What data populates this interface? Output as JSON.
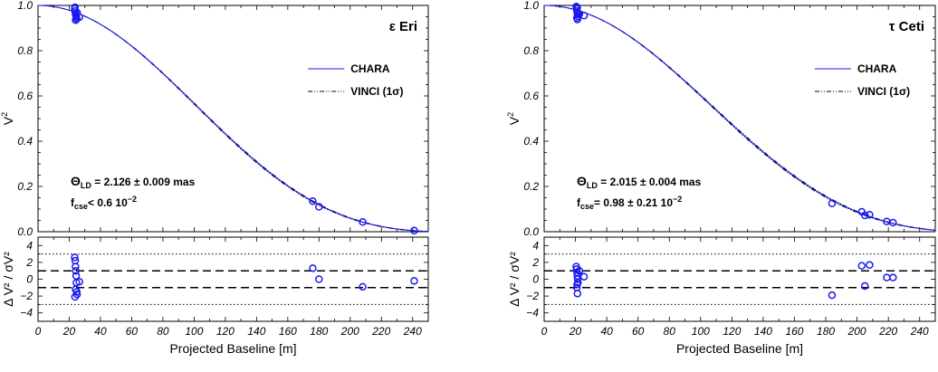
{
  "chart_data": [
    {
      "type": "line",
      "star_label": "ε Eri",
      "theta_ld": "2.126 ± 0.009 mas",
      "theta_symbol": "Θ",
      "theta_sub": "LD",
      "fcse_symbol": "f",
      "fcse_sub": "cse",
      "fcse_text": "<  0.6 10",
      "fcse_exp": "−2",
      "xlabel": "Projected Baseline [m]",
      "ylabel_base": "V",
      "ylabel_sup": "2",
      "res_ylabel": "Δ V² / σV²",
      "xlim": [
        0,
        250
      ],
      "xticks": [
        0,
        20,
        40,
        60,
        80,
        100,
        120,
        140,
        160,
        180,
        200,
        220,
        240
      ],
      "ylim": [
        0,
        1
      ],
      "yticks": [
        0.0,
        0.2,
        0.4,
        0.6,
        0.8,
        1.0
      ],
      "ytick_labels": [
        "0.0",
        "0.2",
        "0.4",
        "0.6",
        "0.8",
        "1.0"
      ],
      "res_ylim": [
        -5,
        5
      ],
      "res_yticks": [
        -4,
        -2,
        0,
        2,
        4
      ],
      "res_ytick_labels": [
        "−4",
        "−2",
        "0",
        "2",
        "4"
      ],
      "legend": [
        {
          "name": "CHARA",
          "style": "solid",
          "color": "#1a1aee"
        },
        {
          "name": "VINCI (1σ)",
          "style": "dashdot",
          "color": "#000000"
        }
      ],
      "model_theta_mas": 2.126,
      "model_theta_vinci_mas": [
        2.117,
        2.135
      ],
      "reference_lines": {
        "dashed": [
          -1,
          1
        ],
        "dotted": [
          -3,
          3
        ]
      },
      "points": [
        {
          "x": 23.5,
          "y": 0.985
        },
        {
          "x": 23.8,
          "y": 0.975
        },
        {
          "x": 24.0,
          "y": 0.965
        },
        {
          "x": 24.2,
          "y": 0.958
        },
        {
          "x": 24.4,
          "y": 0.952
        },
        {
          "x": 24.6,
          "y": 0.945
        },
        {
          "x": 24.1,
          "y": 0.935
        },
        {
          "x": 25.0,
          "y": 0.968
        },
        {
          "x": 23.7,
          "y": 0.992
        },
        {
          "x": 26.5,
          "y": 0.948
        },
        {
          "x": 24.8,
          "y": 0.94
        },
        {
          "x": 176,
          "y": 0.135
        },
        {
          "x": 180,
          "y": 0.11
        },
        {
          "x": 208,
          "y": 0.043
        },
        {
          "x": 241,
          "y": 0.005
        }
      ],
      "residuals": [
        {
          "x": 23.5,
          "y": 2.6
        },
        {
          "x": 23.8,
          "y": 2.2
        },
        {
          "x": 24.0,
          "y": 1.5
        },
        {
          "x": 24.2,
          "y": 1.0
        },
        {
          "x": 24.4,
          "y": 0.4
        },
        {
          "x": 24.6,
          "y": -0.4
        },
        {
          "x": 24.1,
          "y": -1.2
        },
        {
          "x": 25.0,
          "y": -1.8
        },
        {
          "x": 23.7,
          "y": -2.1
        },
        {
          "x": 26.5,
          "y": -0.3
        },
        {
          "x": 24.8,
          "y": -1.5
        },
        {
          "x": 176,
          "y": 1.3
        },
        {
          "x": 180,
          "y": 0.0
        },
        {
          "x": 208,
          "y": -0.9
        },
        {
          "x": 241,
          "y": -0.2
        }
      ]
    },
    {
      "type": "line",
      "star_label": "τ Ceti",
      "theta_ld": "2.015 ± 0.004 mas",
      "theta_symbol": "Θ",
      "theta_sub": "LD",
      "fcse_symbol": "f",
      "fcse_sub": "cse",
      "fcse_text": "=   0.98 ± 0.21 10",
      "fcse_exp": "−2",
      "xlabel": "Projected Baseline [m]",
      "ylabel_base": "V",
      "ylabel_sup": "2",
      "res_ylabel": "Δ V² / σV²",
      "xlim": [
        0,
        250
      ],
      "xticks": [
        0,
        20,
        40,
        60,
        80,
        100,
        120,
        140,
        160,
        180,
        200,
        220,
        240
      ],
      "ylim": [
        0,
        1
      ],
      "yticks": [
        0.0,
        0.2,
        0.4,
        0.6,
        0.8,
        1.0
      ],
      "ytick_labels": [
        "0.0",
        "0.2",
        "0.4",
        "0.6",
        "0.8",
        "1.0"
      ],
      "res_ylim": [
        -5,
        5
      ],
      "res_yticks": [
        -4,
        -2,
        0,
        2,
        4
      ],
      "res_ytick_labels": [
        "−4",
        "−2",
        "0",
        "2",
        "4"
      ],
      "legend": [
        {
          "name": "CHARA",
          "style": "solid",
          "color": "#1a1aee"
        },
        {
          "name": "VINCI (1σ)",
          "style": "dashdot",
          "color": "#000000"
        }
      ],
      "model_theta_mas": 2.015,
      "model_theta_vinci_mas": [
        2.005,
        2.025
      ],
      "reference_lines": {
        "dashed": [
          -1,
          1
        ],
        "dotted": [
          -3,
          3
        ]
      },
      "points": [
        {
          "x": 20.5,
          "y": 0.995
        },
        {
          "x": 20.8,
          "y": 0.985
        },
        {
          "x": 21.0,
          "y": 0.975
        },
        {
          "x": 21.2,
          "y": 0.968
        },
        {
          "x": 21.4,
          "y": 0.96
        },
        {
          "x": 21.6,
          "y": 0.952
        },
        {
          "x": 20.9,
          "y": 0.945
        },
        {
          "x": 21.3,
          "y": 0.938
        },
        {
          "x": 22.5,
          "y": 0.962
        },
        {
          "x": 25.5,
          "y": 0.955
        },
        {
          "x": 21.1,
          "y": 0.99
        },
        {
          "x": 184,
          "y": 0.125
        },
        {
          "x": 203,
          "y": 0.088
        },
        {
          "x": 205,
          "y": 0.072
        },
        {
          "x": 208,
          "y": 0.075
        },
        {
          "x": 219,
          "y": 0.045
        },
        {
          "x": 223,
          "y": 0.04
        }
      ],
      "residuals": [
        {
          "x": 20.5,
          "y": 1.5
        },
        {
          "x": 20.8,
          "y": 1.2
        },
        {
          "x": 21.0,
          "y": 0.8
        },
        {
          "x": 21.2,
          "y": 0.4
        },
        {
          "x": 21.4,
          "y": 0.0
        },
        {
          "x": 21.6,
          "y": -0.4
        },
        {
          "x": 20.9,
          "y": -1.0
        },
        {
          "x": 21.3,
          "y": -1.7
        },
        {
          "x": 22.5,
          "y": 1.0
        },
        {
          "x": 25.5,
          "y": 0.3
        },
        {
          "x": 21.1,
          "y": -0.6
        },
        {
          "x": 184,
          "y": -1.9
        },
        {
          "x": 203,
          "y": 1.6
        },
        {
          "x": 205,
          "y": -0.8
        },
        {
          "x": 208,
          "y": 1.7
        },
        {
          "x": 219,
          "y": 0.2
        },
        {
          "x": 223,
          "y": 0.2
        }
      ]
    }
  ]
}
